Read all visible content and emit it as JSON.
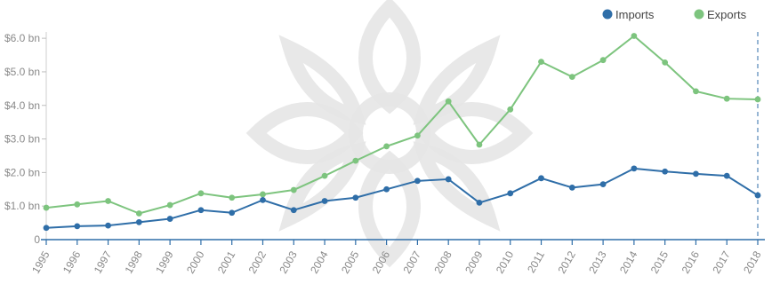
{
  "chart_data": {
    "type": "line",
    "categories": [
      "1995",
      "1996",
      "1997",
      "1998",
      "1999",
      "2000",
      "2001",
      "2002",
      "2003",
      "2004",
      "2005",
      "2006",
      "2007",
      "2008",
      "2009",
      "2010",
      "2011",
      "2012",
      "2013",
      "2014",
      "2015",
      "2016",
      "2017",
      "2018"
    ],
    "series": [
      {
        "name": "Imports",
        "color": "#2f6ea8",
        "values": [
          0.35,
          0.4,
          0.42,
          0.52,
          0.62,
          0.88,
          0.8,
          1.18,
          0.88,
          1.15,
          1.25,
          1.5,
          1.75,
          1.8,
          1.1,
          1.38,
          1.83,
          1.55,
          1.65,
          2.12,
          2.03,
          1.96,
          1.9,
          1.32
        ]
      },
      {
        "name": "Exports",
        "color": "#7dc47e",
        "values": [
          0.95,
          1.05,
          1.15,
          0.78,
          1.03,
          1.38,
          1.25,
          1.35,
          1.48,
          1.9,
          2.35,
          2.78,
          3.1,
          4.12,
          2.83,
          3.88,
          5.3,
          4.85,
          5.35,
          6.07,
          5.28,
          4.42,
          4.2,
          4.18
        ]
      }
    ],
    "y_ticks": [
      0,
      1,
      2,
      3,
      4,
      5,
      6
    ],
    "y_tick_labels": [
      "0",
      "$1.0 bn",
      "$2.0 bn",
      "$3.0 bn",
      "$4.0 bn",
      "$5.0 bn",
      "$6.0 bn"
    ],
    "ylim": [
      0,
      6.4
    ],
    "title": "",
    "xlabel": "",
    "ylabel": "",
    "grid": false,
    "legend_position": "top-right",
    "highlight_last": true
  }
}
